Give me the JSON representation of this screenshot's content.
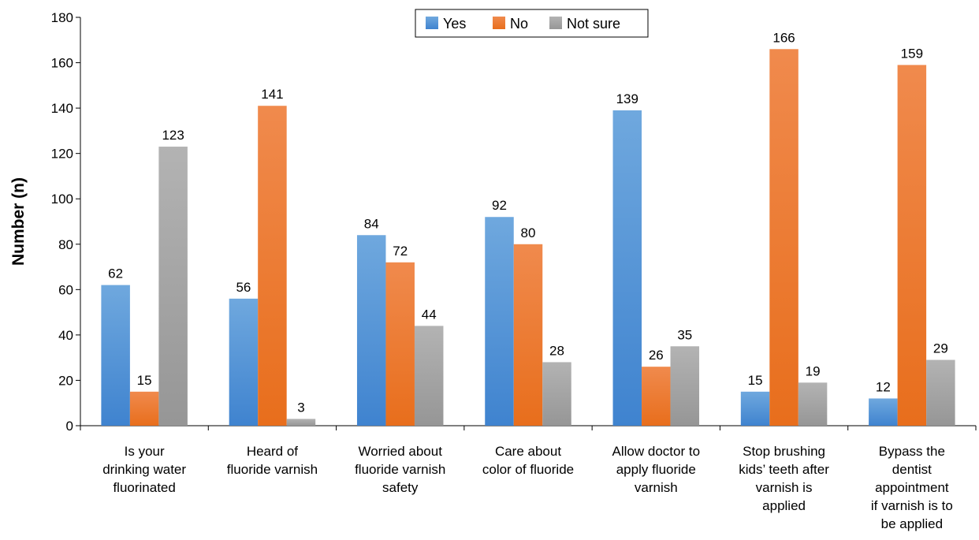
{
  "chart_data": {
    "type": "bar",
    "ylabel": "Number (n)",
    "ylim": [
      0,
      180
    ],
    "yticks": [
      0,
      20,
      40,
      60,
      80,
      100,
      120,
      140,
      160,
      180
    ],
    "grid": false,
    "legend_position": "top-center",
    "categories": [
      [
        "Is your",
        "drinking water",
        "fluorinated"
      ],
      [
        "Heard of",
        "fluoride varnish"
      ],
      [
        "Worried about",
        "fluoride varnish",
        "safety"
      ],
      [
        "Care about",
        "color of fluoride"
      ],
      [
        "Allow doctor to",
        "apply fluoride",
        "varnish"
      ],
      [
        "Stop brushing",
        "kids’ teeth after",
        "varnish is",
        "applied"
      ],
      [
        "Bypass the",
        "dentist",
        "appointment",
        "if varnish is to",
        "be applied"
      ]
    ],
    "series": [
      {
        "name": "Yes",
        "color": "#5b9bd5",
        "values": [
          62,
          56,
          84,
          92,
          139,
          15,
          12
        ]
      },
      {
        "name": "No",
        "color": "#ed7d31",
        "values": [
          15,
          141,
          72,
          80,
          26,
          166,
          159
        ]
      },
      {
        "name": "Not sure",
        "color": "#a5a5a5",
        "values": [
          123,
          3,
          44,
          28,
          35,
          19,
          29
        ]
      }
    ]
  }
}
